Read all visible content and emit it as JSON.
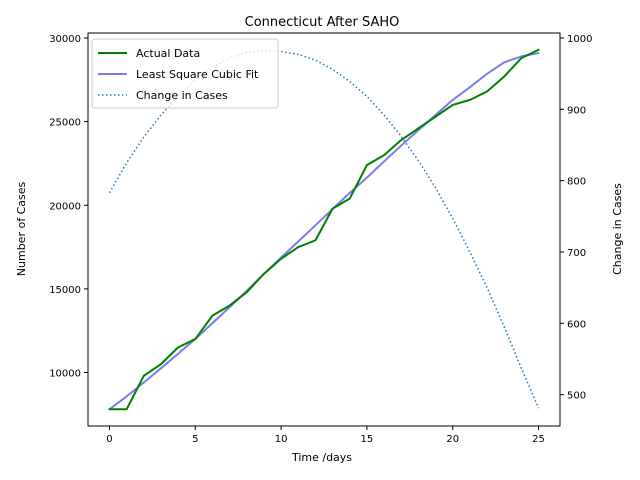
{
  "chart_data": {
    "type": "line",
    "title": "Connecticut After SAHO",
    "xlabel": "Time /days",
    "ylabel": "Number of Cases",
    "ylabel_right": "Change in Cases",
    "xlim": [
      -1.25,
      26.25
    ],
    "ylim": [
      6800,
      30300
    ],
    "ylim_right": [
      456,
      1007
    ],
    "xticks": [
      0,
      5,
      10,
      15,
      20,
      25
    ],
    "yticks": [
      10000,
      15000,
      20000,
      25000,
      30000
    ],
    "yticks_right": [
      500,
      600,
      700,
      800,
      900,
      1000
    ],
    "grid": false,
    "legend_position": "upper left",
    "series": [
      {
        "name": "Actual Data",
        "axis": "left",
        "color": "#008000",
        "style": "solid",
        "x": [
          0,
          1,
          2,
          3,
          4,
          5,
          6,
          7,
          8,
          9,
          10,
          11,
          12,
          13,
          14,
          15,
          16,
          17,
          18,
          19,
          20,
          21,
          22,
          23,
          24,
          25
        ],
        "y": [
          7800,
          7800,
          9800,
          10500,
          11500,
          12000,
          13400,
          14000,
          14800,
          15900,
          16800,
          17500,
          17900,
          19800,
          20400,
          22400,
          23000,
          23900,
          24600,
          25300,
          26000,
          26300,
          26800,
          27700,
          28800,
          29300
        ]
      },
      {
        "name": "Least Square Cubic Fit",
        "axis": "left",
        "color": "#7b7bf0",
        "style": "solid",
        "x": [
          0,
          1,
          2,
          3,
          4,
          5,
          6,
          7,
          8,
          9,
          10,
          11,
          12,
          13,
          14,
          15,
          16,
          17,
          18,
          19,
          20,
          21,
          22,
          23,
          24,
          25
        ],
        "y": [
          7800,
          8570,
          9400,
          10250,
          11120,
          12000,
          12950,
          13900,
          14880,
          15900,
          16870,
          17830,
          18800,
          19770,
          20740,
          21650,
          22620,
          23570,
          24490,
          25400,
          26300,
          27060,
          27860,
          28550,
          28900,
          29100
        ]
      },
      {
        "name": "Change in Cases",
        "axis": "right",
        "color": "#1f77b4",
        "style": "dotted",
        "x": [
          0,
          1,
          2,
          3,
          4,
          5,
          6,
          7,
          8,
          9,
          10,
          11,
          12,
          13,
          14,
          15,
          16,
          17,
          18,
          19,
          20,
          21,
          22,
          23,
          24,
          25
        ],
        "y": [
          783,
          825,
          861,
          892,
          918,
          942,
          959,
          972,
          980,
          982,
          981,
          977,
          969,
          956,
          939,
          918,
          892,
          862,
          828,
          790,
          747,
          700,
          650,
          595,
          537,
          481
        ]
      }
    ]
  }
}
